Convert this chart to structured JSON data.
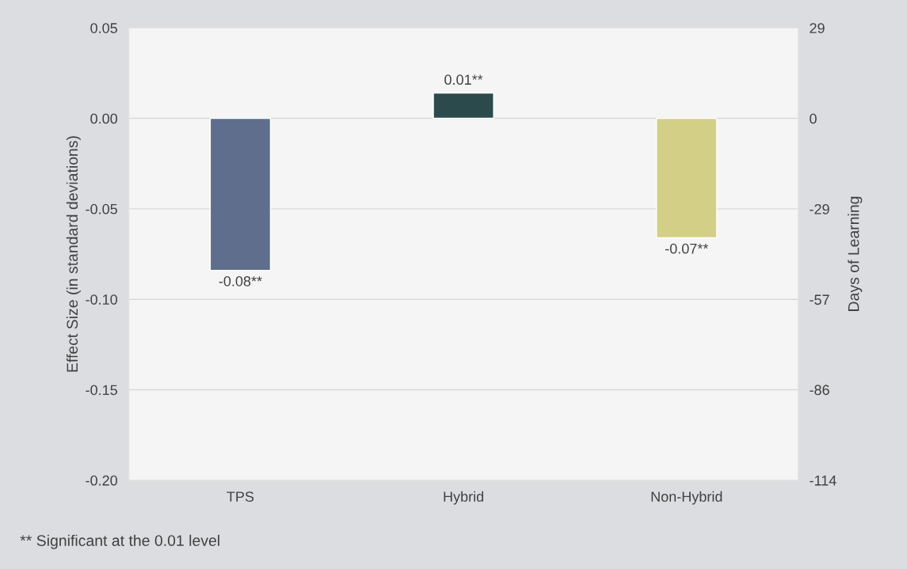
{
  "chart_data": {
    "type": "bar",
    "ylabel": "Effect Size (in standard deviations)",
    "y2label": "Days of Learning",
    "categories": [
      "TPS",
      "Hybrid",
      "Non-Hybrid"
    ],
    "values": [
      -0.084,
      0.014,
      -0.066
    ],
    "colors": [
      "#5e6e8c",
      "#2b4a4b",
      "#d4cf86"
    ],
    "value_labels": [
      "-0.08**",
      "0.01**",
      "-0.07**"
    ],
    "ylim": [
      -0.2,
      0.05
    ],
    "yticks": [
      {
        "value": -0.2,
        "label": "-0.20"
      },
      {
        "value": -0.15,
        "label": "-0.15"
      },
      {
        "value": -0.1,
        "label": "-0.10"
      },
      {
        "value": -0.05,
        "label": "-0.05"
      },
      {
        "value": 0,
        "label": "0.00"
      },
      {
        "value": 0.05,
        "label": "0.05"
      }
    ],
    "y2lim": [
      -114.3,
      28.6
    ],
    "y2ticks": [
      {
        "value": -114.3,
        "label": "-114"
      },
      {
        "value": -85.7,
        "label": "-86"
      },
      {
        "value": -57.2,
        "label": "-57"
      },
      {
        "value": -28.6,
        "label": "-29"
      },
      0,
      {
        "value": 28.6,
        "label": "29"
      }
    ],
    "grid": "y",
    "legend": false,
    "annotations": [
      "** Significant at the 0.01 level"
    ]
  }
}
